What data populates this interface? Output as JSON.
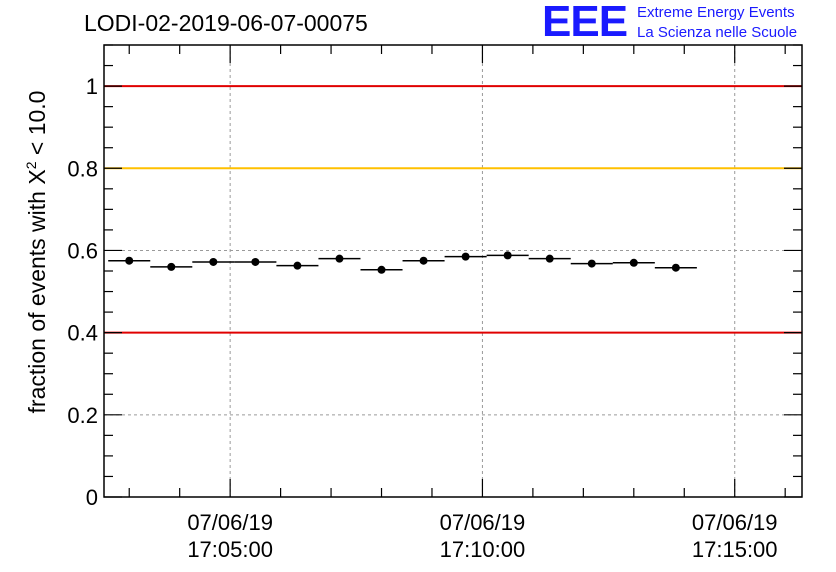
{
  "header": {
    "run_title": "LODI-02-2019-06-07-00075"
  },
  "logo": {
    "mark": "EEE",
    "line1": "Extreme Energy Events",
    "line2": "La Scienza nelle Scuole",
    "color": "#1a1aff"
  },
  "axis": {
    "ylabel_prefix": "fraction of events with X",
    "ylabel_sup": "2",
    "ylabel_suffix": " < 10.0"
  },
  "chart_data": {
    "type": "scatter",
    "title": "LODI-02-2019-06-07-00075",
    "xlabel": "",
    "ylabel": "fraction of events with X² < 10.0",
    "x_ticks": [
      {
        "x": "17:05:00",
        "label_date": "07/06/19",
        "label_time": "17:05:00"
      },
      {
        "x": "17:10:00",
        "label_date": "07/06/19",
        "label_time": "17:10:00"
      },
      {
        "x": "17:15:00",
        "label_date": "07/06/19",
        "label_time": "17:15:00"
      }
    ],
    "xlim": [
      "17:02:30",
      "17:16:20"
    ],
    "y_ticks": [
      {
        "v": 0,
        "label": "0"
      },
      {
        "v": 0.2,
        "label": "0.2"
      },
      {
        "v": 0.4,
        "label": "0.4"
      },
      {
        "v": 0.6,
        "label": "0.6"
      },
      {
        "v": 0.8,
        "label": "0.8"
      },
      {
        "v": 1,
        "label": "1"
      }
    ],
    "ylim": [
      0,
      1.1
    ],
    "grid": true,
    "bin_width_seconds": 50,
    "points": [
      {
        "x": "17:03:00",
        "y": 0.575
      },
      {
        "x": "17:03:50",
        "y": 0.56
      },
      {
        "x": "17:04:40",
        "y": 0.572
      },
      {
        "x": "17:05:30",
        "y": 0.572
      },
      {
        "x": "17:06:20",
        "y": 0.563
      },
      {
        "x": "17:07:10",
        "y": 0.58
      },
      {
        "x": "17:08:00",
        "y": 0.553
      },
      {
        "x": "17:08:50",
        "y": 0.575
      },
      {
        "x": "17:09:40",
        "y": 0.585
      },
      {
        "x": "17:10:30",
        "y": 0.588
      },
      {
        "x": "17:11:20",
        "y": 0.58
      },
      {
        "x": "17:12:10",
        "y": 0.568
      },
      {
        "x": "17:13:00",
        "y": 0.57
      },
      {
        "x": "17:13:50",
        "y": 0.558
      }
    ],
    "reference_lines": [
      {
        "y": 1.0,
        "color": "#e00000"
      },
      {
        "y": 0.8,
        "color": "#ffc000"
      },
      {
        "y": 0.4,
        "color": "#e00000"
      }
    ]
  }
}
